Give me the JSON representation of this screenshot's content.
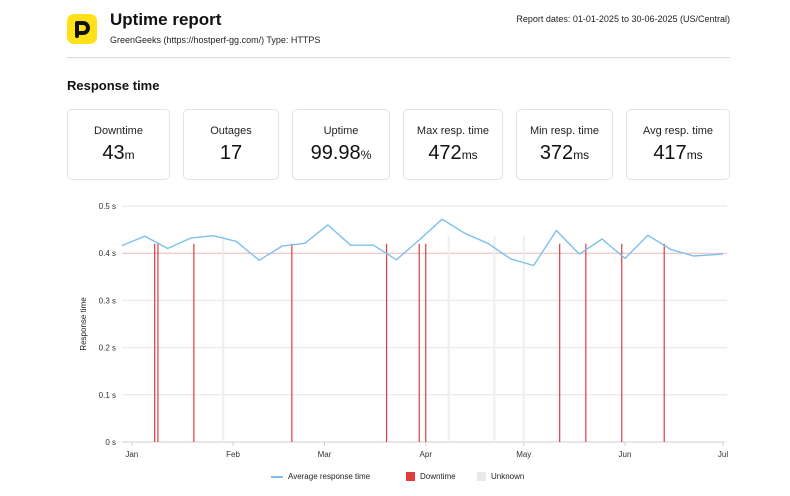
{
  "header": {
    "title": "Uptime report",
    "subtitle": "GreenGeeks (https://hostperf-gg.com/) Type: HTTPS",
    "report_dates": "Report dates: 01-01-2025 to 30-06-2025 (US/Central)"
  },
  "section_title": "Response time",
  "cards": [
    {
      "label": "Downtime",
      "value": "43",
      "unit": "m"
    },
    {
      "label": "Outages",
      "value": "17",
      "unit": ""
    },
    {
      "label": "Uptime",
      "value": "99.98",
      "unit": "%"
    },
    {
      "label": "Max resp. time",
      "value": "472",
      "unit": "ms"
    },
    {
      "label": "Min resp. time",
      "value": "372",
      "unit": "ms"
    },
    {
      "label": "Avg resp. time",
      "value": "417",
      "unit": "ms"
    }
  ],
  "colors": {
    "line": "#7dc0ee",
    "downtime": "#e03c3c",
    "unknown": "#eeeeee",
    "logo": "#ffe019"
  },
  "chart_data": {
    "type": "line",
    "ylabel": "Response time",
    "ylim": [
      0,
      0.5
    ],
    "yticks": [
      {
        "value": 0,
        "label": "0 s"
      },
      {
        "value": 0.1,
        "label": "0.1 s"
      },
      {
        "value": 0.2,
        "label": "0.2 s"
      },
      {
        "value": 0.3,
        "label": "0.3 s"
      },
      {
        "value": 0.4,
        "label": "0.4 s"
      },
      {
        "value": 0.5,
        "label": "0.5 s"
      }
    ],
    "xticks": [
      {
        "date": "2025-01-01",
        "label": "Jan"
      },
      {
        "date": "2025-02-01",
        "label": "Feb"
      },
      {
        "date": "2025-03-01",
        "label": "Mar"
      },
      {
        "date": "2025-04-01",
        "label": "Apr"
      },
      {
        "date": "2025-05-01",
        "label": "May"
      },
      {
        "date": "2025-06-01",
        "label": "Jun"
      },
      {
        "date": "2025-07-01",
        "label": "Jul"
      }
    ],
    "xlim": [
      "2024-12-29",
      "2025-07-01"
    ],
    "series": [
      {
        "name": "Average response time",
        "points": [
          {
            "x": "2024-12-29",
            "y": 0.416
          },
          {
            "x": "2025-01-05",
            "y": 0.436
          },
          {
            "x": "2025-01-12",
            "y": 0.41
          },
          {
            "x": "2025-01-19",
            "y": 0.432
          },
          {
            "x": "2025-01-26",
            "y": 0.437
          },
          {
            "x": "2025-02-02",
            "y": 0.425
          },
          {
            "x": "2025-02-09",
            "y": 0.385
          },
          {
            "x": "2025-02-16",
            "y": 0.415
          },
          {
            "x": "2025-02-23",
            "y": 0.421
          },
          {
            "x": "2025-03-02",
            "y": 0.46
          },
          {
            "x": "2025-03-09",
            "y": 0.417
          },
          {
            "x": "2025-03-16",
            "y": 0.417
          },
          {
            "x": "2025-03-23",
            "y": 0.386
          },
          {
            "x": "2025-03-30",
            "y": 0.428
          },
          {
            "x": "2025-04-06",
            "y": 0.472
          },
          {
            "x": "2025-04-13",
            "y": 0.442
          },
          {
            "x": "2025-04-20",
            "y": 0.421
          },
          {
            "x": "2025-04-27",
            "y": 0.388
          },
          {
            "x": "2025-05-04",
            "y": 0.374
          },
          {
            "x": "2025-05-11",
            "y": 0.448
          },
          {
            "x": "2025-05-18",
            "y": 0.398
          },
          {
            "x": "2025-05-25",
            "y": 0.43
          },
          {
            "x": "2025-06-01",
            "y": 0.389
          },
          {
            "x": "2025-06-08",
            "y": 0.438
          },
          {
            "x": "2025-06-15",
            "y": 0.408
          },
          {
            "x": "2025-06-22",
            "y": 0.394
          },
          {
            "x": "2025-07-01",
            "y": 0.398
          }
        ]
      }
    ],
    "downtime_dates": [
      "2025-01-08",
      "2025-01-09",
      "2025-01-20",
      "2025-02-19",
      "2025-03-20",
      "2025-03-30",
      "2025-04-01",
      "2025-05-12",
      "2025-05-20",
      "2025-05-31",
      "2025-06-13"
    ],
    "unknown_dates": [
      "2025-01-29",
      "2025-04-08",
      "2025-04-22",
      "2025-05-01"
    ],
    "grid": true,
    "legend_position": "bottom",
    "legend": [
      {
        "label": "Average response time",
        "kind": "line"
      },
      {
        "label": "Downtime",
        "kind": "downtime"
      },
      {
        "label": "Unknown",
        "kind": "unknown"
      }
    ]
  }
}
